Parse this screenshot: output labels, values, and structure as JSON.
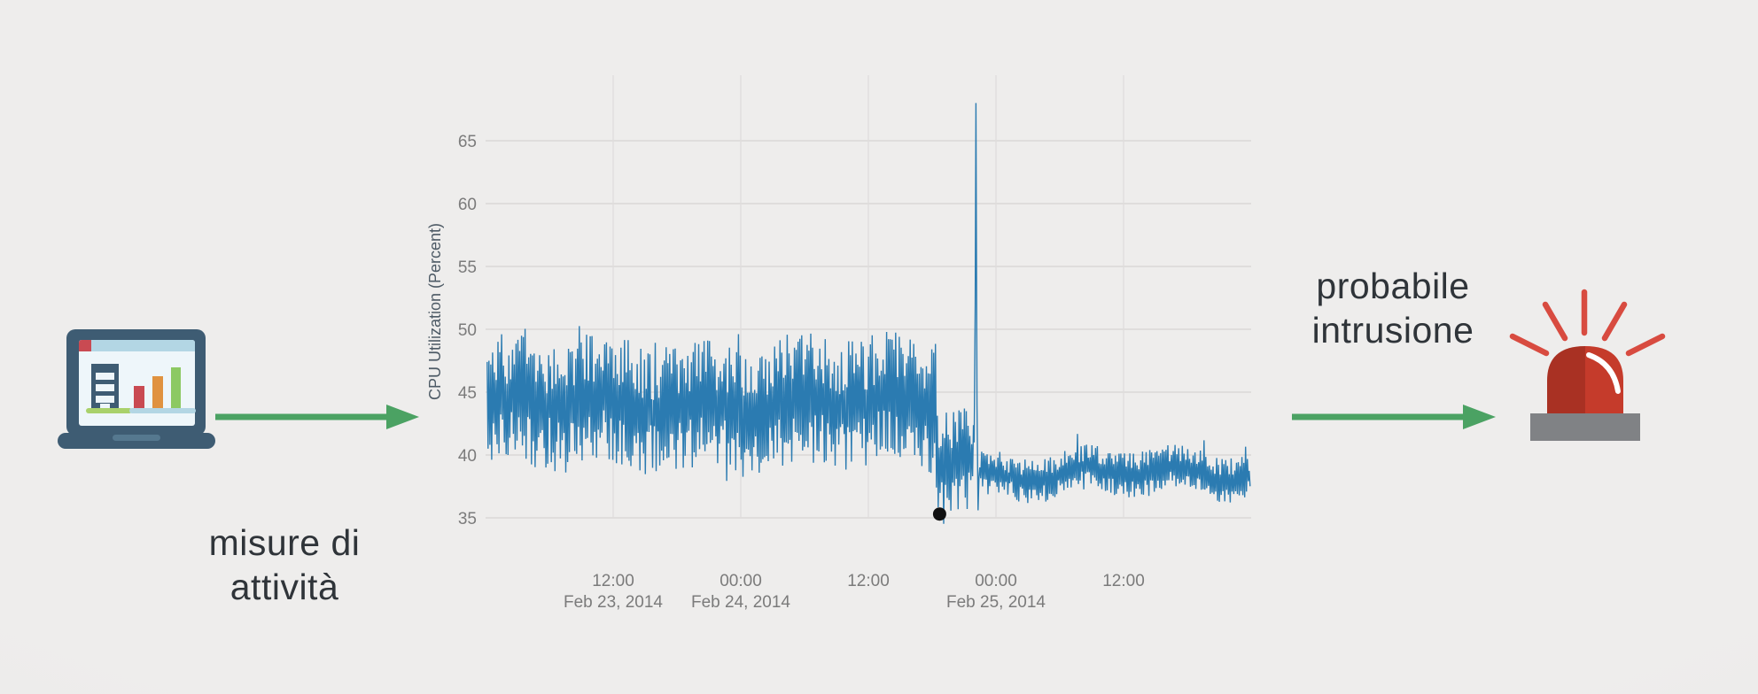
{
  "page": {
    "background": "#ecebea",
    "description_items": [
      "laptop-analytics-icon",
      "activity-chart",
      "alarm-siren-icon"
    ]
  },
  "flow": {
    "left_label": {
      "line1": "misure di",
      "line2": "attività"
    },
    "right_label": {
      "line1": "probabile",
      "line2": "intrusione"
    },
    "arrow_color": "#4ba263",
    "text_color": "#2f3439"
  },
  "icons": {
    "laptop": {
      "frame": "#3e5c73",
      "screen": "#eef6fa",
      "topbar": "#b3d6e4",
      "accent_square": "#c94a52",
      "building": "#3e5c73",
      "window": "#eef6fa",
      "ground": "#a9d16b",
      "bar_baseline": "#b3d6e4",
      "bar_red": "#c94a52",
      "bar_orange": "#e0923f",
      "bar_green": "#8cc963",
      "base_notch": "#55788f"
    },
    "alarm": {
      "dome_left": "#a93123",
      "dome_right": "#c53b2b",
      "rays": "#d84b40",
      "base": "#808285",
      "highlight": "#ffffff"
    }
  },
  "chart_data": {
    "type": "line",
    "title": "",
    "xlabel": "",
    "ylabel": "CPU Utilization (Percent)",
    "series_color": "#2b7bb1",
    "grid": true,
    "legend": "none",
    "plot_bg": "transparent",
    "grid_color_h": "#dfdddc",
    "grid_color_v": "#e2e0df",
    "tick_color": "#7b7b7b",
    "axis_title_color": "#4e5b66",
    "ylim": [
      33.8,
      70.5
    ],
    "yticks": [
      65,
      60,
      55,
      50,
      45,
      40,
      35
    ],
    "x_start": "Feb 23, 2014 00:00",
    "x_span_hours": 72,
    "xticks": [
      {
        "t": 12,
        "time": "12:00",
        "date": "Feb 23, 2014"
      },
      {
        "t": 24,
        "time": "00:00",
        "date": "Feb 24, 2014"
      },
      {
        "t": 36,
        "time": "12:00",
        "date": ""
      },
      {
        "t": 48,
        "time": "00:00",
        "date": "Feb 25, 2014"
      },
      {
        "t": 60,
        "time": "12:00",
        "date": ""
      }
    ],
    "seed": 11,
    "sample_step_hours": 0.085,
    "segments": [
      {
        "from_h": 0.15,
        "to_h": 42.4,
        "mean": 44.0,
        "spread": 5.2,
        "peak_chance": 0.02,
        "peak_extra": 2.3,
        "dip_chance": 0.01,
        "dip_extra": 1.5,
        "desc": "normal operation, CPU oscillating ~39.5-49.5%, rare peaks to 51.5%"
      },
      {
        "from_h": 42.4,
        "to_h": 45.9,
        "mean": 40.0,
        "spread": 4.3,
        "peak_chance": 0.03,
        "peak_extra": 0.5,
        "dip_chance": 0.06,
        "dip_extra": 0.9,
        "desc": "level shift / unstable period, ~35-44.5%"
      },
      {
        "from_h": 46.4,
        "to_h": 71.9,
        "mean": 38.5,
        "spread": 1.8,
        "peak_chance": 0.04,
        "peak_extra": 0.9,
        "dip_chance": 0.03,
        "dip_extra": 0.6,
        "desc": "post-event plateau, ~36.5-41%"
      }
    ],
    "spike_points": [
      {
        "t": 45.95,
        "v": 41.0
      },
      {
        "t": 46.05,
        "v": 52.0
      },
      {
        "t": 46.12,
        "v": 68.0
      },
      {
        "t": 46.22,
        "v": 44.0
      },
      {
        "t": 46.32,
        "v": 35.6
      }
    ],
    "anomaly_marker": {
      "t": 42.7,
      "v": 35.3,
      "color": "#111111",
      "radius": 7.5
    }
  }
}
